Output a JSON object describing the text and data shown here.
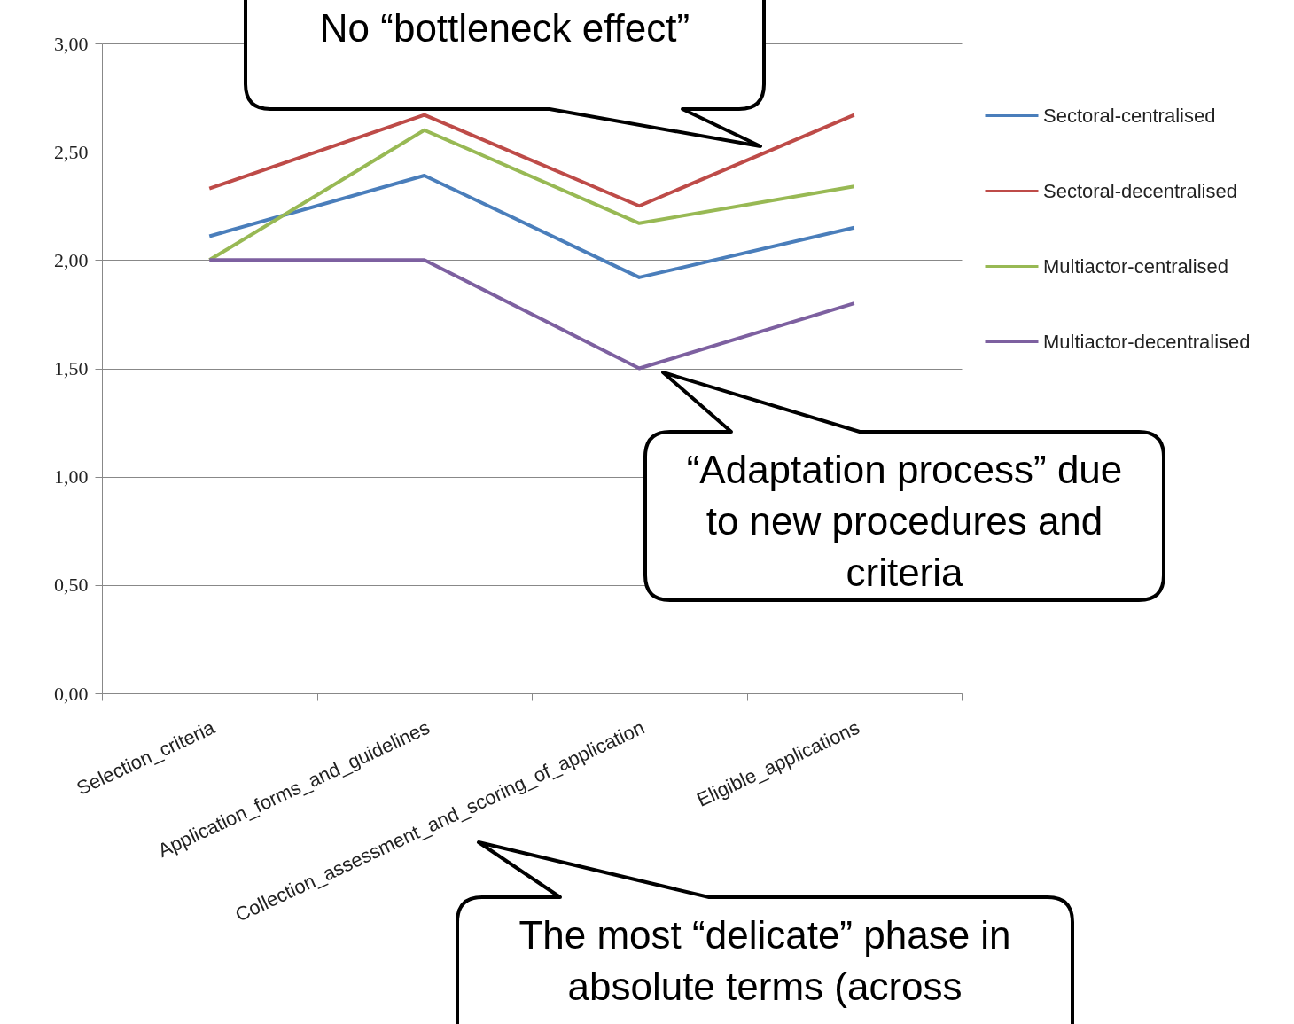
{
  "chart_data": {
    "type": "line",
    "categories": [
      "Selection_criteria",
      "Application_forms_and_guidelines",
      "Collection_assessment_and_scoring_of_application",
      "Eligible_applications"
    ],
    "series": [
      {
        "name": "Sectoral-centralised",
        "color": "#4a7ebb",
        "values": [
          2.11,
          2.39,
          1.92,
          2.15
        ]
      },
      {
        "name": "Sectoral-decentralised",
        "color": "#be4b48",
        "values": [
          2.33,
          2.67,
          2.25,
          2.67
        ]
      },
      {
        "name": "Multiactor-centralised",
        "color": "#98b954",
        "values": [
          2.0,
          2.6,
          2.17,
          2.34
        ]
      },
      {
        "name": "Multiactor-decentralised",
        "color": "#7d60a0",
        "values": [
          2.0,
          2.0,
          1.5,
          1.8
        ]
      }
    ],
    "ylim": [
      0,
      3
    ],
    "yticks": [
      {
        "value": 0,
        "label": "0,00"
      },
      {
        "value": 0.5,
        "label": "0,50"
      },
      {
        "value": 1,
        "label": "1,00"
      },
      {
        "value": 1.5,
        "label": "1,50"
      },
      {
        "value": 2,
        "label": "2,00"
      },
      {
        "value": 2.5,
        "label": "2,50"
      },
      {
        "value": 3,
        "label": "3,00"
      }
    ],
    "grid": "y",
    "legend": "top right",
    "marker": "none",
    "line_style": "solid",
    "annotations": [
      "No “bottleneck effect”",
      "“Adaptation process” due to new procedures and criteria",
      "The most “delicate” phase in absolute terms (across"
    ]
  }
}
